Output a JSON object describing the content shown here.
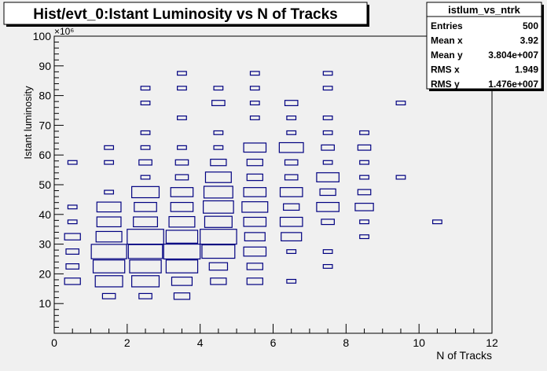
{
  "chart_data": {
    "type": "box-histogram-2d",
    "title": "Hist/evt_0:Istant Luminosity vs N of Tracks",
    "xlabel": "N of Tracks",
    "ylabel": "Istant luminosity",
    "y_exponent_label": "×10⁶",
    "xlim": [
      0,
      12
    ],
    "ylim": [
      0,
      100
    ],
    "x_ticks": [
      "0",
      "2",
      "4",
      "6",
      "8",
      "10",
      "12"
    ],
    "y_ticks": [
      "10",
      "20",
      "30",
      "40",
      "50",
      "60",
      "70",
      "80",
      "90",
      "100"
    ],
    "x_bin_width": 1,
    "y_bin_width": 5,
    "box_color": "#000080",
    "stats": {
      "name": "istlum_vs_ntrk",
      "rows": [
        {
          "label": "Entries",
          "value": "500"
        },
        {
          "label": "Mean x",
          "value": "3.92"
        },
        {
          "label": "Mean y",
          "value": "3.804e+007"
        },
        {
          "label": "RMS x",
          "value": "1.949"
        },
        {
          "label": "RMS y",
          "value": "1.476e+007"
        }
      ]
    },
    "cells": [
      {
        "x": 0.5,
        "y": 17.5,
        "n": 3
      },
      {
        "x": 0.5,
        "y": 22.5,
        "n": 2
      },
      {
        "x": 0.5,
        "y": 27.5,
        "n": 2
      },
      {
        "x": 0.5,
        "y": 32.5,
        "n": 3
      },
      {
        "x": 0.5,
        "y": 37.5,
        "n": 1
      },
      {
        "x": 0.5,
        "y": 42.5,
        "n": 1
      },
      {
        "x": 0.5,
        "y": 57.5,
        "n": 1
      },
      {
        "x": 1.5,
        "y": 12.5,
        "n": 2
      },
      {
        "x": 1.5,
        "y": 17.5,
        "n": 9
      },
      {
        "x": 1.5,
        "y": 22.5,
        "n": 12
      },
      {
        "x": 1.5,
        "y": 27.5,
        "n": 15
      },
      {
        "x": 1.5,
        "y": 32.5,
        "n": 8
      },
      {
        "x": 1.5,
        "y": 37.5,
        "n": 7
      },
      {
        "x": 1.5,
        "y": 42.5,
        "n": 7
      },
      {
        "x": 1.5,
        "y": 47.5,
        "n": 1
      },
      {
        "x": 1.5,
        "y": 57.5,
        "n": 1
      },
      {
        "x": 1.5,
        "y": 62.5,
        "n": 1
      },
      {
        "x": 2.5,
        "y": 12.5,
        "n": 2
      },
      {
        "x": 2.5,
        "y": 17.5,
        "n": 9
      },
      {
        "x": 2.5,
        "y": 22.5,
        "n": 12
      },
      {
        "x": 2.5,
        "y": 27.5,
        "n": 14
      },
      {
        "x": 2.5,
        "y": 32.5,
        "n": 16
      },
      {
        "x": 2.5,
        "y": 37.5,
        "n": 7
      },
      {
        "x": 2.5,
        "y": 42.5,
        "n": 6
      },
      {
        "x": 2.5,
        "y": 47.5,
        "n": 9
      },
      {
        "x": 2.5,
        "y": 52.5,
        "n": 1
      },
      {
        "x": 2.5,
        "y": 57.5,
        "n": 2
      },
      {
        "x": 2.5,
        "y": 62.5,
        "n": 1
      },
      {
        "x": 2.5,
        "y": 67.5,
        "n": 1
      },
      {
        "x": 2.5,
        "y": 77.5,
        "n": 1
      },
      {
        "x": 2.5,
        "y": 82.5,
        "n": 1
      },
      {
        "x": 3.5,
        "y": 12.5,
        "n": 3
      },
      {
        "x": 3.5,
        "y": 17.5,
        "n": 5
      },
      {
        "x": 3.5,
        "y": 22.5,
        "n": 12
      },
      {
        "x": 3.5,
        "y": 27.5,
        "n": 16
      },
      {
        "x": 3.5,
        "y": 32.5,
        "n": 12
      },
      {
        "x": 3.5,
        "y": 37.5,
        "n": 8
      },
      {
        "x": 3.5,
        "y": 42.5,
        "n": 6
      },
      {
        "x": 3.5,
        "y": 47.5,
        "n": 6
      },
      {
        "x": 3.5,
        "y": 52.5,
        "n": 2
      },
      {
        "x": 3.5,
        "y": 57.5,
        "n": 2
      },
      {
        "x": 3.5,
        "y": 62.5,
        "n": 1
      },
      {
        "x": 3.5,
        "y": 72.5,
        "n": 1
      },
      {
        "x": 3.5,
        "y": 82.5,
        "n": 1
      },
      {
        "x": 3.5,
        "y": 87.5,
        "n": 1
      },
      {
        "x": 4.5,
        "y": 17.5,
        "n": 3
      },
      {
        "x": 4.5,
        "y": 22.5,
        "n": 4
      },
      {
        "x": 4.5,
        "y": 27.5,
        "n": 13
      },
      {
        "x": 4.5,
        "y": 32.5,
        "n": 16
      },
      {
        "x": 4.5,
        "y": 37.5,
        "n": 9
      },
      {
        "x": 4.5,
        "y": 42.5,
        "n": 11
      },
      {
        "x": 4.5,
        "y": 47.5,
        "n": 10
      },
      {
        "x": 4.5,
        "y": 52.5,
        "n": 8
      },
      {
        "x": 4.5,
        "y": 57.5,
        "n": 3
      },
      {
        "x": 4.5,
        "y": 62.5,
        "n": 1
      },
      {
        "x": 4.5,
        "y": 67.5,
        "n": 1
      },
      {
        "x": 4.5,
        "y": 77.5,
        "n": 2
      },
      {
        "x": 4.5,
        "y": 82.5,
        "n": 1
      },
      {
        "x": 5.5,
        "y": 17.5,
        "n": 3
      },
      {
        "x": 5.5,
        "y": 22.5,
        "n": 3
      },
      {
        "x": 5.5,
        "y": 27.5,
        "n": 6
      },
      {
        "x": 5.5,
        "y": 32.5,
        "n": 5
      },
      {
        "x": 5.5,
        "y": 37.5,
        "n": 6
      },
      {
        "x": 5.5,
        "y": 42.5,
        "n": 8
      },
      {
        "x": 5.5,
        "y": 47.5,
        "n": 6
      },
      {
        "x": 5.5,
        "y": 52.5,
        "n": 3
      },
      {
        "x": 5.5,
        "y": 57.5,
        "n": 3
      },
      {
        "x": 5.5,
        "y": 62.5,
        "n": 6
      },
      {
        "x": 5.5,
        "y": 72.5,
        "n": 1
      },
      {
        "x": 5.5,
        "y": 77.5,
        "n": 1
      },
      {
        "x": 5.5,
        "y": 82.5,
        "n": 1
      },
      {
        "x": 5.5,
        "y": 87.5,
        "n": 1
      },
      {
        "x": 6.5,
        "y": 17.5,
        "n": 1
      },
      {
        "x": 6.5,
        "y": 27.5,
        "n": 1
      },
      {
        "x": 6.5,
        "y": 32.5,
        "n": 5
      },
      {
        "x": 6.5,
        "y": 37.5,
        "n": 6
      },
      {
        "x": 6.5,
        "y": 42.5,
        "n": 3
      },
      {
        "x": 6.5,
        "y": 47.5,
        "n": 6
      },
      {
        "x": 6.5,
        "y": 52.5,
        "n": 2
      },
      {
        "x": 6.5,
        "y": 57.5,
        "n": 2
      },
      {
        "x": 6.5,
        "y": 62.5,
        "n": 7
      },
      {
        "x": 6.5,
        "y": 67.5,
        "n": 1
      },
      {
        "x": 6.5,
        "y": 72.5,
        "n": 1
      },
      {
        "x": 6.5,
        "y": 77.5,
        "n": 2
      },
      {
        "x": 7.5,
        "y": 22.5,
        "n": 1
      },
      {
        "x": 7.5,
        "y": 27.5,
        "n": 1
      },
      {
        "x": 7.5,
        "y": 37.5,
        "n": 2
      },
      {
        "x": 7.5,
        "y": 42.5,
        "n": 6
      },
      {
        "x": 7.5,
        "y": 47.5,
        "n": 3
      },
      {
        "x": 7.5,
        "y": 52.5,
        "n": 6
      },
      {
        "x": 7.5,
        "y": 57.5,
        "n": 1
      },
      {
        "x": 7.5,
        "y": 62.5,
        "n": 2
      },
      {
        "x": 7.5,
        "y": 67.5,
        "n": 1
      },
      {
        "x": 7.5,
        "y": 72.5,
        "n": 1
      },
      {
        "x": 7.5,
        "y": 82.5,
        "n": 1
      },
      {
        "x": 7.5,
        "y": 87.5,
        "n": 1
      },
      {
        "x": 8.5,
        "y": 32.5,
        "n": 1
      },
      {
        "x": 8.5,
        "y": 37.5,
        "n": 1
      },
      {
        "x": 8.5,
        "y": 42.5,
        "n": 4
      },
      {
        "x": 8.5,
        "y": 47.5,
        "n": 2
      },
      {
        "x": 8.5,
        "y": 52.5,
        "n": 1
      },
      {
        "x": 8.5,
        "y": 57.5,
        "n": 1
      },
      {
        "x": 8.5,
        "y": 62.5,
        "n": 2
      },
      {
        "x": 8.5,
        "y": 67.5,
        "n": 1
      },
      {
        "x": 9.5,
        "y": 52.5,
        "n": 1
      },
      {
        "x": 9.5,
        "y": 77.5,
        "n": 1
      },
      {
        "x": 10.5,
        "y": 37.5,
        "n": 1
      }
    ]
  }
}
